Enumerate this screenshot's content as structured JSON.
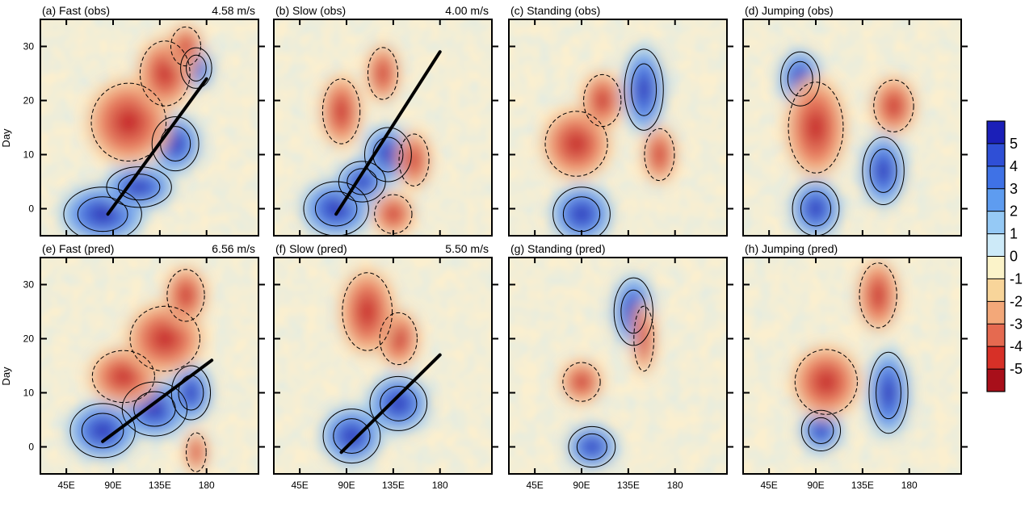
{
  "chart_data": {
    "type": "heatmap",
    "figure_grid": "2 rows x 4 columns, shared axes and shared colorbar",
    "x_ticks": [
      "45E",
      "90E",
      "135E",
      "180"
    ],
    "x_range_deg": [
      20,
      230
    ],
    "y_label": "Day",
    "y_ticks": [
      "0",
      "10",
      "20",
      "30"
    ],
    "y_range": [
      -5,
      35
    ],
    "grid": false,
    "colorbar": {
      "position": "right",
      "labels": [
        "5",
        "4",
        "3",
        "2",
        "1",
        "0",
        "-1",
        "-2",
        "-3",
        "-4",
        "-5"
      ],
      "colors": [
        "#1b1fb8",
        "#2f4fd6",
        "#3f72e6",
        "#5e9cf0",
        "#95c9f5",
        "#cdeaf8",
        "#fbf3c9",
        "#f8d59a",
        "#f3a879",
        "#e56a50",
        "#d73027",
        "#a80f1a"
      ]
    },
    "panels": [
      {
        "title": "(a) Fast (obs)",
        "speed": "4.58 m/s",
        "blue_blobs": [
          [
            80,
            -1,
            30,
            4
          ],
          [
            115,
            4,
            25,
            3
          ],
          [
            150,
            12,
            18,
            4
          ],
          [
            170,
            26,
            12,
            3
          ]
        ],
        "red_blobs": [
          [
            105,
            16,
            30,
            6
          ],
          [
            140,
            25,
            20,
            5
          ],
          [
            160,
            30,
            12,
            3
          ]
        ],
        "line": [
          [
            85,
            -1
          ],
          [
            180,
            24
          ]
        ]
      },
      {
        "title": "(b) Slow (obs)",
        "speed": "4.00 m/s",
        "blue_blobs": [
          [
            80,
            0,
            25,
            4
          ],
          [
            130,
            10,
            18,
            4
          ],
          [
            105,
            5,
            18,
            3
          ]
        ],
        "red_blobs": [
          [
            85,
            18,
            15,
            5
          ],
          [
            135,
            -1,
            15,
            3
          ],
          [
            155,
            9,
            12,
            4
          ],
          [
            125,
            25,
            12,
            4
          ]
        ],
        "line": [
          [
            80,
            -1
          ],
          [
            180,
            29
          ]
        ]
      },
      {
        "title": "(c) Standing (obs)",
        "speed": "",
        "blue_blobs": [
          [
            90,
            -1,
            22,
            4
          ],
          [
            150,
            22,
            15,
            6
          ]
        ],
        "red_blobs": [
          [
            85,
            12,
            25,
            5
          ],
          [
            110,
            20,
            15,
            4
          ],
          [
            165,
            10,
            12,
            4
          ]
        ],
        "line": []
      },
      {
        "title": "(d) Jumping (obs)",
        "speed": "",
        "blue_blobs": [
          [
            90,
            0,
            18,
            4
          ],
          [
            155,
            7,
            16,
            5
          ],
          [
            75,
            24,
            15,
            4
          ]
        ],
        "red_blobs": [
          [
            90,
            15,
            22,
            7
          ],
          [
            165,
            19,
            16,
            4
          ]
        ],
        "line": []
      },
      {
        "title": "(e) Fast (pred)",
        "speed": "6.56 m/s",
        "blue_blobs": [
          [
            80,
            3,
            25,
            4
          ],
          [
            130,
            7,
            25,
            4
          ],
          [
            165,
            10,
            15,
            4
          ]
        ],
        "red_blobs": [
          [
            100,
            13,
            25,
            4
          ],
          [
            140,
            20,
            28,
            5
          ],
          [
            160,
            28,
            15,
            4
          ],
          [
            170,
            -1,
            8,
            3
          ]
        ],
        "line": [
          [
            80,
            1
          ],
          [
            185,
            16
          ]
        ]
      },
      {
        "title": "(f) Slow (pred)",
        "speed": "5.50 m/s",
        "blue_blobs": [
          [
            95,
            2,
            22,
            4
          ],
          [
            140,
            8,
            22,
            4
          ]
        ],
        "red_blobs": [
          [
            140,
            20,
            15,
            4
          ],
          [
            110,
            25,
            20,
            6
          ]
        ],
        "line": [
          [
            85,
            -1
          ],
          [
            180,
            17
          ]
        ]
      },
      {
        "title": "(g) Standing (pred)",
        "speed": "",
        "blue_blobs": [
          [
            100,
            0,
            18,
            3
          ],
          [
            140,
            25,
            15,
            5
          ]
        ],
        "red_blobs": [
          [
            90,
            12,
            15,
            3
          ],
          [
            150,
            20,
            8,
            5
          ]
        ],
        "line": []
      },
      {
        "title": "(h) Jumping (pred)",
        "speed": "",
        "blue_blobs": [
          [
            95,
            3,
            15,
            3
          ],
          [
            160,
            10,
            15,
            6
          ]
        ],
        "red_blobs": [
          [
            100,
            12,
            25,
            5
          ],
          [
            150,
            28,
            15,
            5
          ]
        ],
        "line": []
      }
    ]
  }
}
